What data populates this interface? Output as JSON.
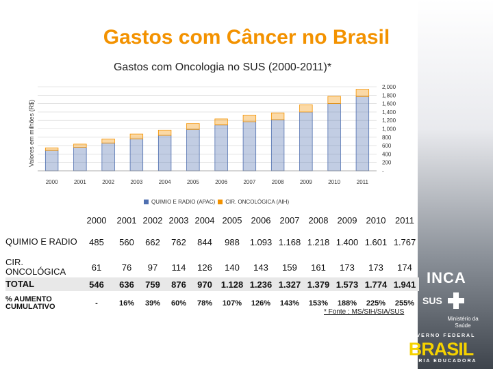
{
  "title": "Gastos com Câncer no Brasil",
  "subtitle": "Gastos com Oncologia no SUS (2000-2011)*",
  "chart_data": {
    "type": "bar",
    "categories": [
      "2000",
      "2001",
      "2002",
      "2003",
      "2004",
      "2005",
      "2006",
      "2007",
      "2008",
      "2009",
      "2010",
      "2011"
    ],
    "series": [
      {
        "name": "QUIMIO E RADIO (APAC)",
        "values": [
          485,
          560,
          662,
          762,
          844,
          988,
          1093,
          1168,
          1218,
          1400,
          1601,
          1767
        ],
        "color": "#4f6fb0"
      },
      {
        "name": "CIR. ONCOLÓGICA (AIH)",
        "values": [
          61,
          76,
          97,
          114,
          126,
          140,
          143,
          159,
          161,
          173,
          173,
          174
        ],
        "color": "#f39200"
      }
    ],
    "ylabel": "Valores em milhões (R$)",
    "yticks": [
      "2,000",
      "1,800",
      "1,600",
      "1,400",
      "1,200",
      "1,000",
      "800",
      "600",
      "400",
      "200",
      "-"
    ],
    "ylim": [
      0,
      2000
    ],
    "stacked": true
  },
  "table": {
    "years": [
      "2000",
      "2001",
      "2002",
      "2003",
      "2004",
      "2005",
      "2006",
      "2007",
      "2008",
      "2009",
      "2010",
      "2011"
    ],
    "rows": [
      {
        "label": "QUIMIO E RADIO",
        "values": [
          "485",
          "560",
          "662",
          "762",
          "844",
          "988",
          "1.093",
          "1.168",
          "1.218",
          "1.400",
          "1.601",
          "1.767"
        ]
      },
      {
        "label": "CIR. ONCOLÓGICA",
        "values": [
          "61",
          "76",
          "97",
          "114",
          "126",
          "140",
          "143",
          "159",
          "161",
          "173",
          "173",
          "174"
        ]
      },
      {
        "label": "TOTAL",
        "values": [
          "546",
          "636",
          "759",
          "876",
          "970",
          "1.128",
          "1.236",
          "1.327",
          "1.379",
          "1.573",
          "1.774",
          "1.941"
        ]
      },
      {
        "label": "% AUMENTO CUMULATIVO",
        "values": [
          "-",
          "16%",
          "39%",
          "60%",
          "78%",
          "107%",
          "126%",
          "143%",
          "153%",
          "188%",
          "225%",
          "255%"
        ]
      }
    ]
  },
  "footnote": "* Fonte : MS/SIH/SIA/SUS",
  "logos": {
    "inca": "INCA",
    "sus": "SUS",
    "ministerio": "Ministério da Saúde",
    "governo": "GOVERNO FEDERAL",
    "brasil": "BRASIL",
    "patria": "PÁTRIA EDUCADORA"
  }
}
